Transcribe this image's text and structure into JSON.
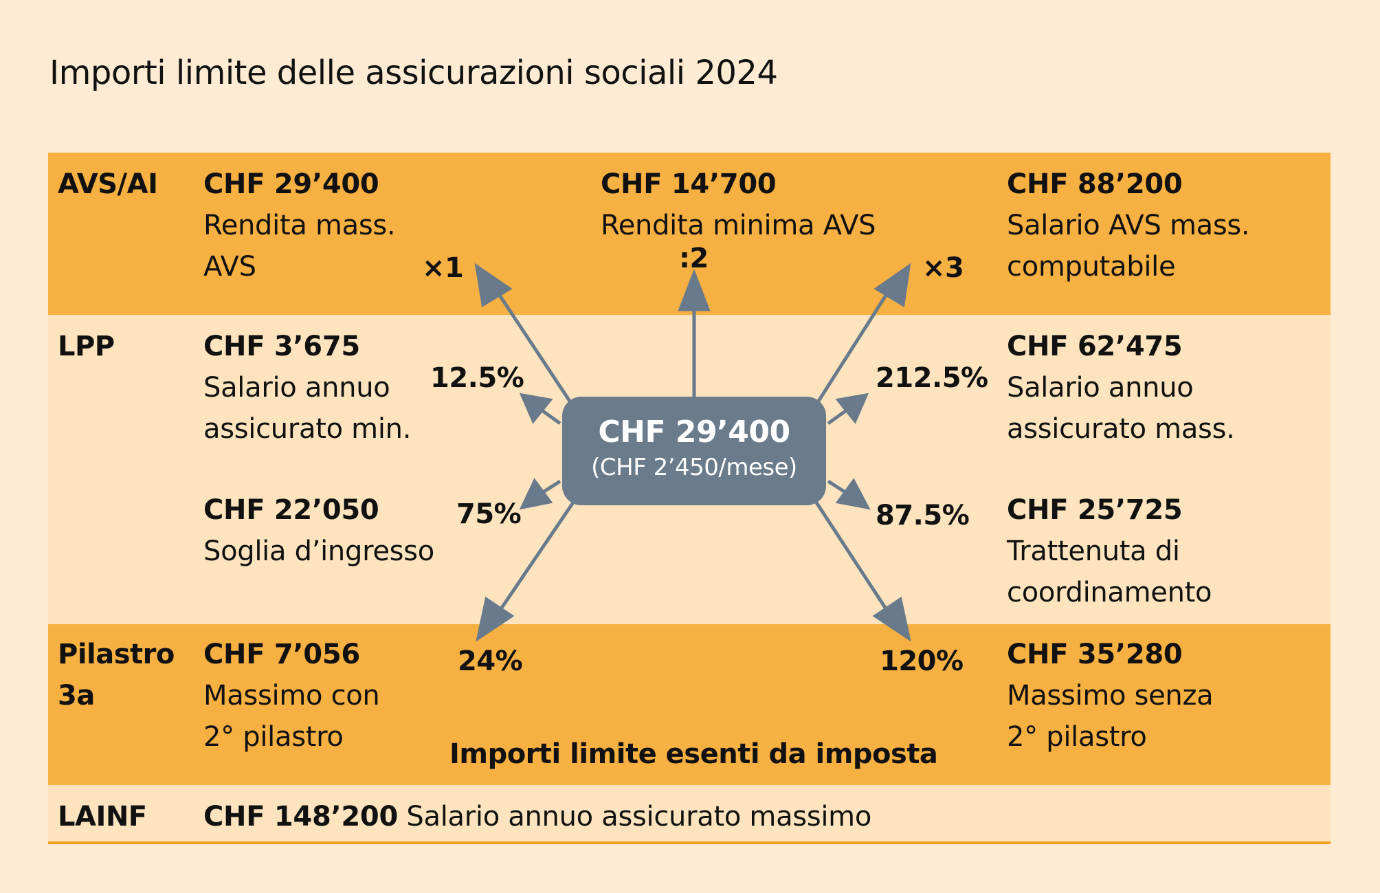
{
  "title": "Importi limite delle assicurazioni sociali 2024",
  "colors": {
    "background": "#fdebd3",
    "band_orange": "#f7b042",
    "band_light": "#fde4bf",
    "hub": "#6a7b8c",
    "arrow": "#687a8b",
    "rule": "#f0a21f"
  },
  "categories": {
    "avs": "AVS/AI",
    "lpp": "LPP",
    "pilastro": [
      "Pilastro",
      "3a"
    ],
    "lainf": "LAINF"
  },
  "hub": {
    "amount": "CHF 29’400",
    "monthly": "(CHF 2’450/mese)"
  },
  "avs": {
    "left": {
      "amount": "CHF 29’400",
      "desc": [
        "Rendita mass.",
        "AVS"
      ]
    },
    "center": {
      "amount": "CHF 14’700",
      "desc": [
        "Rendita minima AVS"
      ]
    },
    "right": {
      "amount": "CHF 88’200",
      "desc": [
        "Salario AVS mass.",
        "computabile"
      ]
    }
  },
  "lpp": {
    "top_left": {
      "amount": "CHF 3’675",
      "desc": [
        "Salario annuo",
        "assicurato min."
      ]
    },
    "top_right": {
      "amount": "CHF 62’475",
      "desc": [
        "Salario annuo",
        "assicurato mass."
      ]
    },
    "bottom_left": {
      "amount": "CHF 22’050",
      "desc": [
        "Soglia d’ingresso"
      ]
    },
    "bottom_right": {
      "amount": "CHF 25’725",
      "desc": [
        "Trattenuta di",
        "coordinamento"
      ]
    }
  },
  "pilastro": {
    "left": {
      "amount": "CHF 7’056",
      "desc": [
        "Massimo con",
        "2° pilastro"
      ]
    },
    "right": {
      "amount": "CHF 35’280",
      "desc": [
        "Massimo senza",
        "2° pilastro"
      ]
    },
    "note": "Importi limite esenti da imposta"
  },
  "lainf": {
    "amount": "CHF 148’200",
    "desc": "Salario annuo assicurato massimo"
  },
  "factors": {
    "avs_left": "×1",
    "avs_center": ":2",
    "avs_right": "×3",
    "lpp_top_left": "12.5%",
    "lpp_top_right": "212.5%",
    "lpp_bottom_left": "75%",
    "lpp_bottom_right": "87.5%",
    "pilastro_left": "24%",
    "pilastro_right": "120%"
  }
}
